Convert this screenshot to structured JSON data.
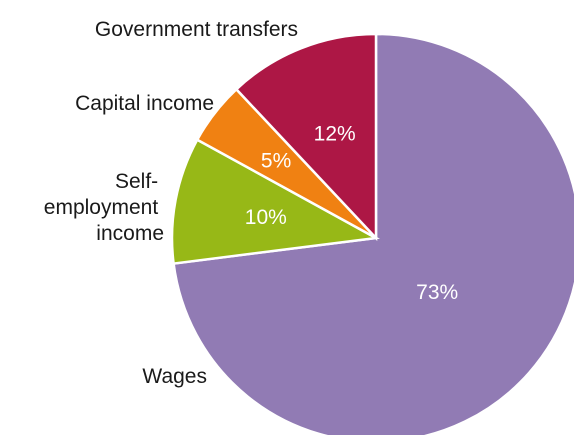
{
  "chart_data": {
    "type": "pie",
    "categories": [
      "Wages",
      "Self-employment income",
      "Capital income",
      "Government transfers"
    ],
    "values": [
      73,
      10,
      5,
      12
    ],
    "labels": [
      "73%",
      "10%",
      "5%",
      "12%"
    ],
    "colors": [
      "#917bb4",
      "#97b817",
      "#f08112",
      "#ad1745"
    ],
    "start": "12 o'clock",
    "direction": "clockwise"
  }
}
